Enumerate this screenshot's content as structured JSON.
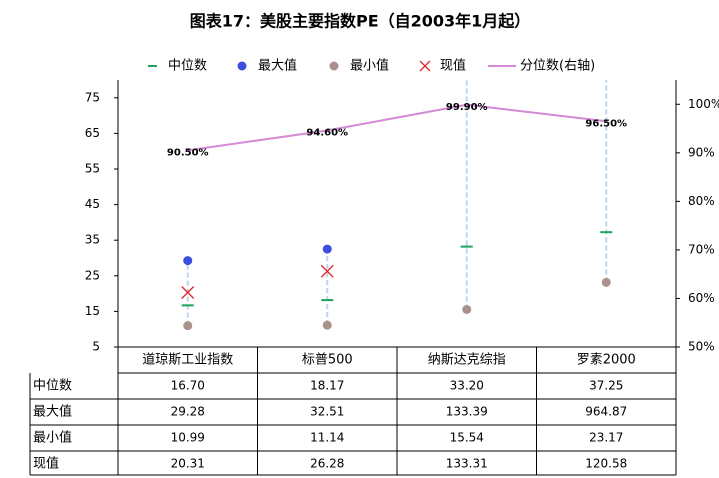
{
  "chart_data": {
    "type": "range_dot",
    "title": "图表17：美股主要指数PE（自2003年1月起）",
    "categories": [
      "道琼斯工业指数",
      "标普500",
      "纳斯达克综指",
      "罗素2000"
    ],
    "series": [
      {
        "name": "中位数",
        "color": "#1aa35a",
        "marker": "dash",
        "values": [
          16.7,
          18.17,
          33.2,
          37.25
        ],
        "value_labels": [
          "16.70",
          "18.17",
          "33.20",
          "37.25"
        ]
      },
      {
        "name": "最大值",
        "color": "#3b4fe0",
        "marker": "circle",
        "values": [
          29.28,
          32.51,
          133.39,
          964.87
        ],
        "value_labels": [
          "29.28",
          "32.51",
          "133.39",
          "964.87"
        ]
      },
      {
        "name": "最小值",
        "color": "#a89289",
        "marker": "circle",
        "values": [
          10.99,
          11.14,
          15.54,
          23.17
        ],
        "value_labels": [
          "10.99",
          "11.14",
          "15.54",
          "23.17"
        ]
      },
      {
        "name": "现值",
        "color": "#e0262b",
        "marker": "x",
        "values": [
          20.31,
          26.28,
          133.31,
          120.58
        ],
        "value_labels": [
          "20.31",
          "26.28",
          "133.31",
          "120.58"
        ]
      },
      {
        "name": "分位数(右轴)",
        "color": "#d58ad8",
        "marker": "line",
        "axis": "y2",
        "values": [
          90.5,
          94.6,
          99.9,
          96.5
        ],
        "value_labels": [
          "90.50%",
          "94.60%",
          "99.90%",
          "96.50%"
        ]
      }
    ],
    "ylim": [
      5,
      80
    ],
    "yticks": [
      5,
      15,
      25,
      35,
      45,
      55,
      65,
      75
    ],
    "y2lim": [
      50,
      105
    ],
    "y2ticks": [
      {
        "value": 50,
        "label": "50%"
      },
      {
        "value": 60,
        "label": "60%"
      },
      {
        "value": 70,
        "label": "70%"
      },
      {
        "value": 80,
        "label": "80%"
      },
      {
        "value": 90,
        "label": "90%"
      },
      {
        "value": 100,
        "label": "100%"
      }
    ],
    "range_line_color": "#bcd3ea"
  }
}
